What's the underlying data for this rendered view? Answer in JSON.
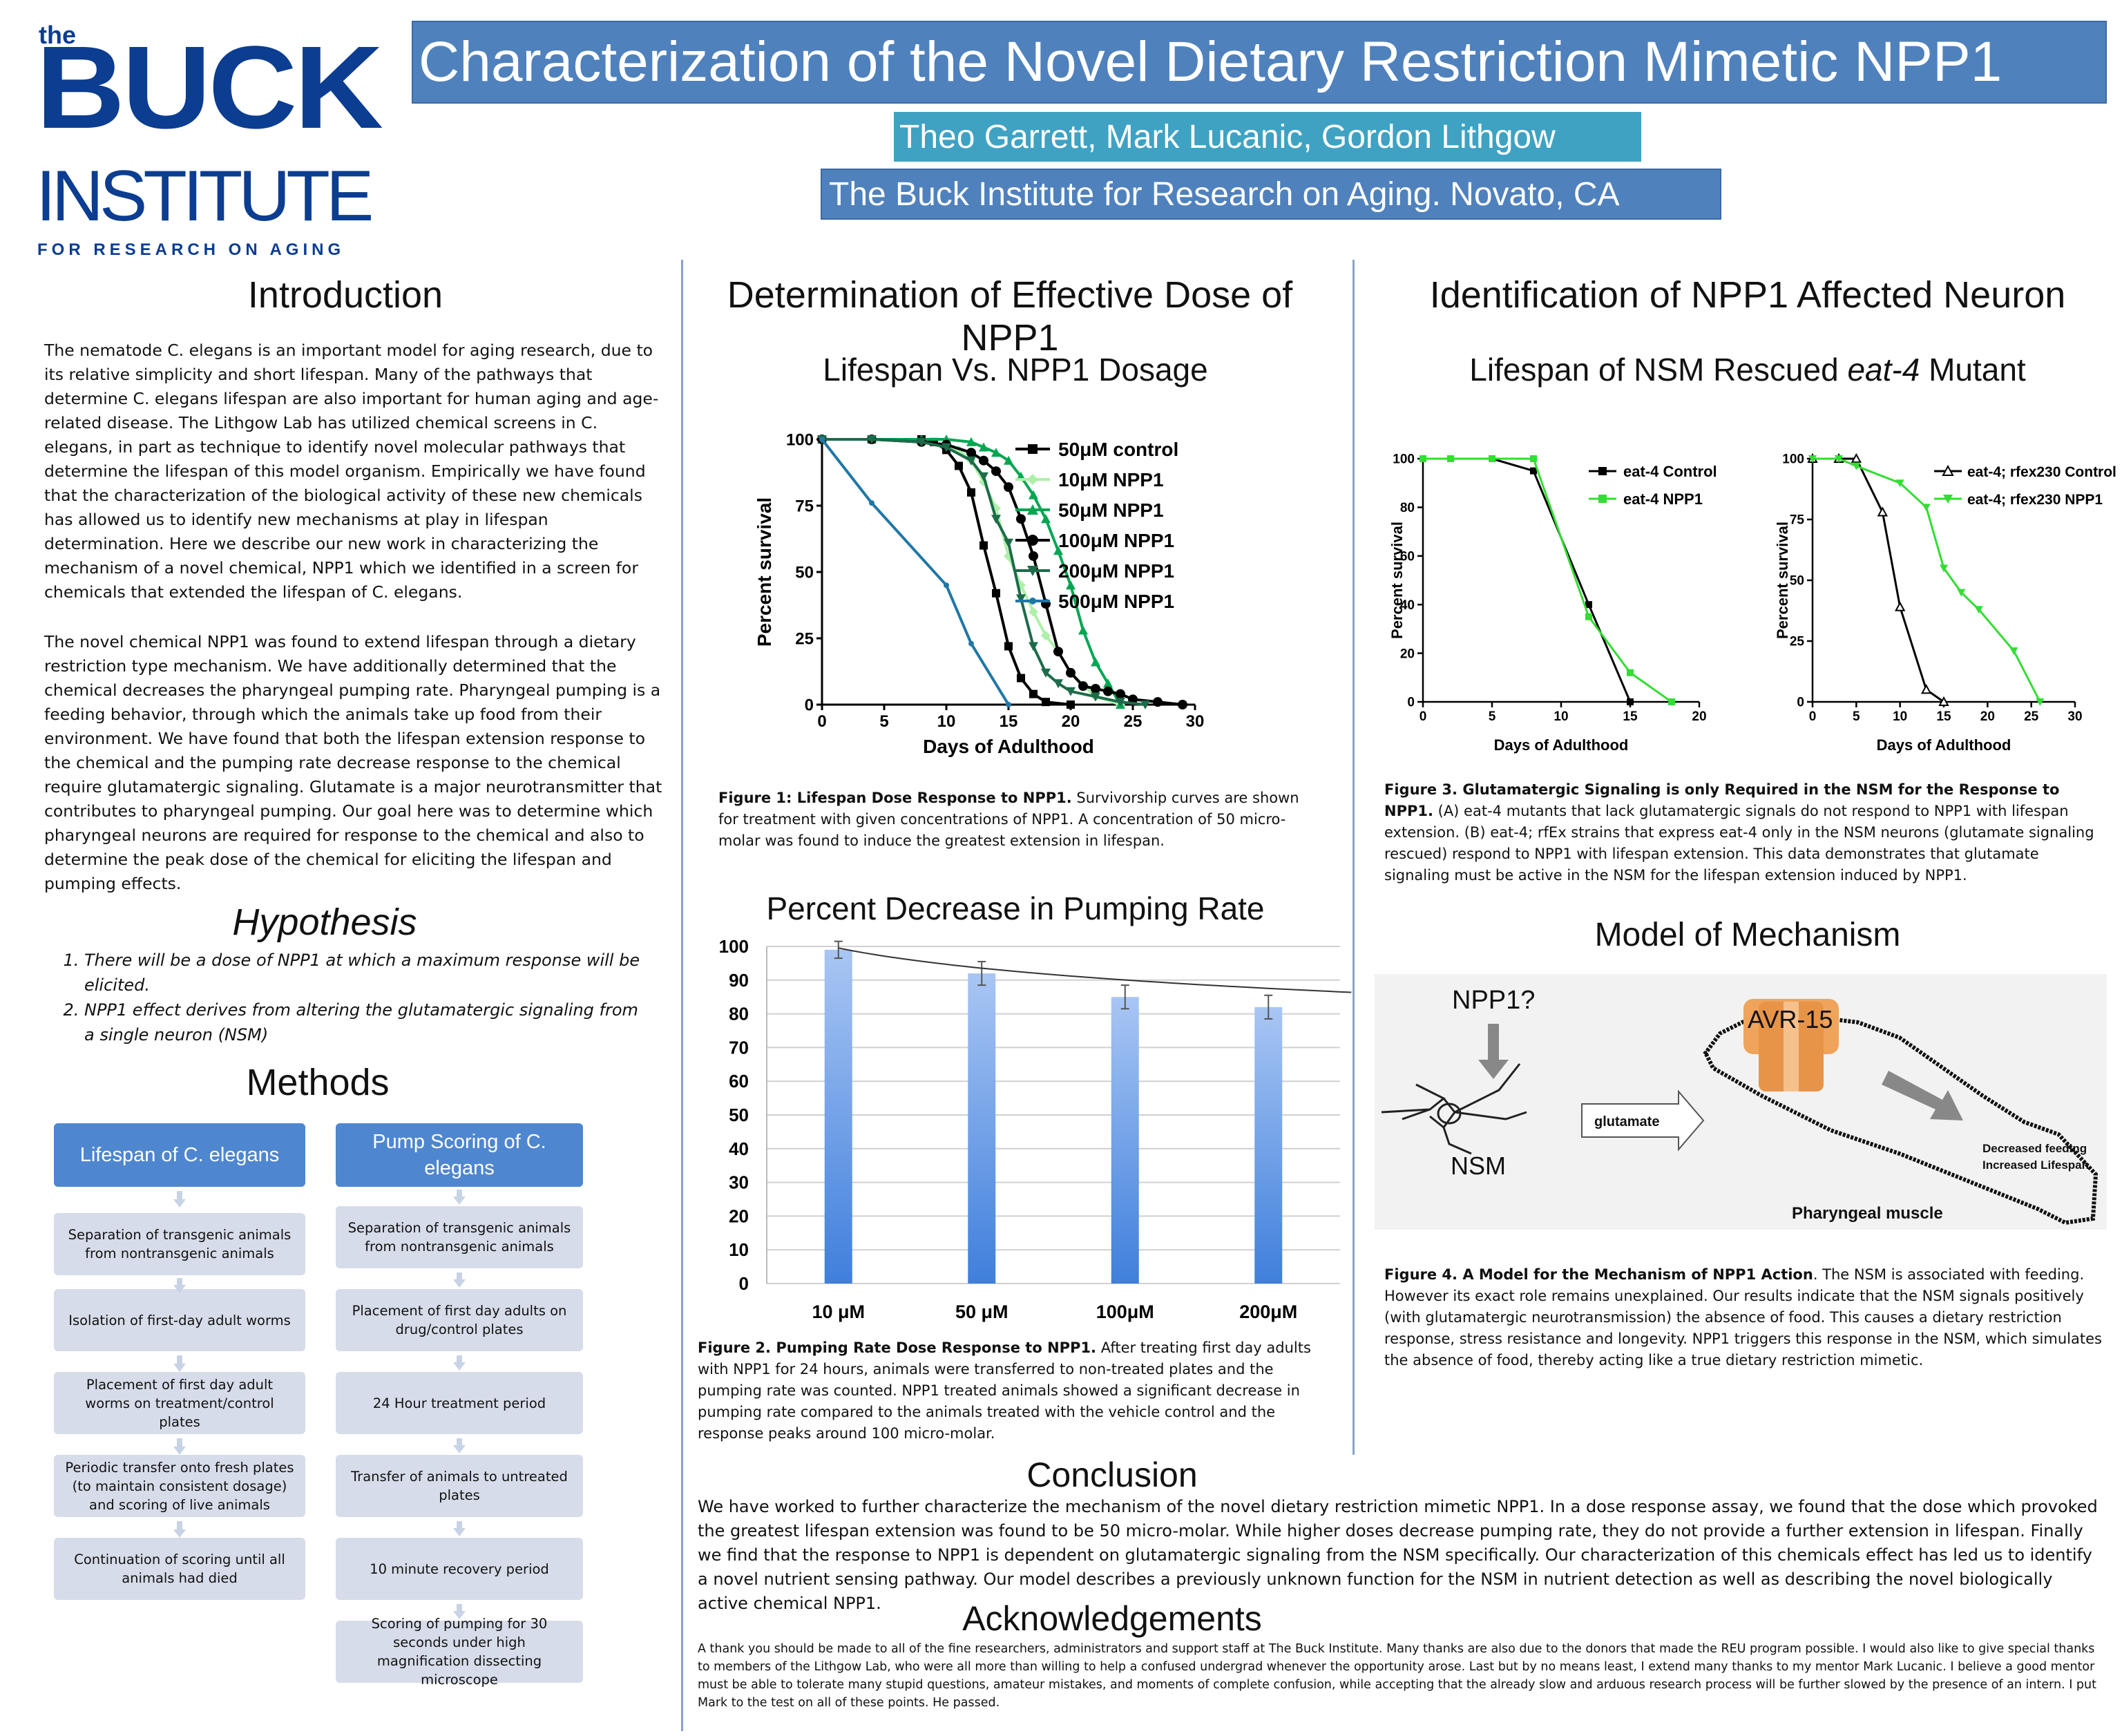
{
  "logo": {
    "line1": "the",
    "line2": "BUCK",
    "line3": "INSTITUTE",
    "line4": "FOR RESEARCH ON AGING"
  },
  "header": {
    "title": "Characterization of the Novel Dietary Restriction Mimetic NPP1",
    "authors": "Theo Garrett, Mark Lucanic, Gordon Lithgow",
    "affiliation": "The Buck Institute for Research on Aging. Novato, CA"
  },
  "introduction": {
    "title": "Introduction",
    "p1": "The nematode C. elegans is an important model for aging research, due to its relative simplicity and short lifespan. Many of the pathways that determine C. elegans lifespan are also important for human aging and age-related disease. The Lithgow Lab has utilized chemical screens in C. elegans, in part as technique to identify novel molecular pathways that determine the lifespan of this model organism. Empirically we have found that the characterization of the biological activity of these new chemicals has allowed us to identify new mechanisms at play in lifespan determination. Here we describe our new work in characterizing the mechanism of a novel chemical, NPP1 which we identified in a screen for chemicals that extended the lifespan of C. elegans.",
    "p2": "The novel chemical NPP1 was found to extend lifespan through a dietary restriction type mechanism. We have additionally determined that the chemical decreases the pharyngeal pumping rate. Pharyngeal pumping is a feeding behavior, through which the animals take up food from their environment. We have found that both the lifespan extension response to the chemical and the pumping rate decrease response to the chemical require glutamatergic signaling. Glutamate is a major neurotransmitter that contributes to pharyngeal pumping. Our goal here was to determine which pharyngeal neurons are required for response to the chemical and also to determine the peak dose of the chemical for eliciting the lifespan and pumping effects."
  },
  "hypothesis": {
    "title": "Hypothesis",
    "items": [
      "There will be a dose of NPP1 at which a maximum response will be elicited.",
      "NPP1 effect derives from altering the glutamatergic signaling from a single neuron (NSM)"
    ]
  },
  "methods": {
    "title": "Methods",
    "col1_head": "Lifespan of C. elegans",
    "col1": [
      "Separation of transgenic animals from nontransgenic animals",
      "Isolation of first-day adult worms",
      "Placement of first day adult worms on treatment/control plates",
      "Periodic transfer onto fresh plates (to maintain consistent dosage) and scoring of live animals",
      "Continuation of scoring until all animals had died"
    ],
    "col2_head": "Pump Scoring of C. elegans",
    "col2": [
      "Separation of transgenic animals from nontransgenic animals",
      "Placement of first day adults on drug/control plates",
      "24 Hour treatment period",
      "Transfer of animals to untreated plates",
      "10 minute recovery period",
      "Scoring of pumping for 30 seconds under high magnification dissecting microscope"
    ]
  },
  "dose_section": {
    "title": "Determination of Effective Dose of NPP1",
    "chart1_title": "Lifespan Vs. NPP1 Dosage",
    "fig1_caption_bold": "Figure 1: Lifespan Dose Response to NPP1.",
    "fig1_caption": " Survivorship curves are shown for treatment with given concentrations of NPP1. A concentration of 50 micro-molar was found to induce the greatest extension in lifespan.",
    "chart2_title": "Percent Decrease in Pumping Rate",
    "fig2_caption_bold": "Figure 2. Pumping Rate Dose Response to NPP1.",
    "fig2_caption": " After treating first day adults with NPP1 for 24 hours, animals were transferred to non-treated plates and the pumping rate was counted. NPP1 treated animals showed a significant decrease in pumping rate compared to the animals treated with the vehicle control and the response peaks around 100 micro-molar."
  },
  "neuron_section": {
    "title": "Identification of NPP1 Affected Neuron",
    "chart3_title_a": "Lifespan of NSM Rescued ",
    "chart3_title_b": "eat-4",
    "chart3_title_c": " Mutant",
    "fig3_caption_bold": "Figure 3. Glutamatergic Signaling is only Required in the NSM for the Response to NPP1.",
    "fig3_caption": " (A) eat-4 mutants that lack glutamatergic signals do not respond to NPP1 with lifespan extension. (B) eat-4; rfEx strains that express eat-4 only in the NSM neurons (glutamate signaling rescued) respond to NPP1 with lifespan extension. This data demonstrates that glutamate signaling must be active in the NSM for the lifespan extension induced by NPP1.",
    "model_title": "Model of Mechanism",
    "model_labels": {
      "npp1": "NPP1?",
      "avr": "AVR-15",
      "glutamate": "glutamate",
      "nsm": "NSM",
      "muscle": "Pharyngeal muscle",
      "effect1": "Decreased feeding",
      "effect2": "Increased Lifespan"
    },
    "fig4_caption_bold": "Figure 4. A Model for the Mechanism of NPP1 Action",
    "fig4_caption": ". The NSM is associated with feeding. However its exact role remains unexplained. Our results indicate that the NSM signals positively (with glutamatergic neurotransmission) the absence of food. This causes a dietary restriction response, stress resistance and longevity. NPP1 triggers this response in the NSM, which simulates the absence of food, thereby acting like a true dietary restriction mimetic."
  },
  "conclusion": {
    "title": "Conclusion",
    "text": "We have worked to further characterize the mechanism of the novel dietary restriction mimetic NPP1. In a dose response assay, we found that the dose which provoked the greatest lifespan extension was found to be 50 micro-molar. While higher doses decrease pumping rate, they do not provide a further extension in lifespan. Finally we find that the response to NPP1 is dependent on glutamatergic signaling from the NSM specifically. Our characterization of this chemicals effect has led us to identify a novel nutrient sensing pathway. Our model describes a previously unknown function for the NSM in nutrient detection as well as describing the novel biologically active chemical NPP1."
  },
  "acknowledgements": {
    "title": "Acknowledgements",
    "text": "A thank you should be made to all of the fine researchers, administrators and support staff at The Buck Institute. Many thanks are also due to the donors that made the REU program possible. I would also like to give special thanks to members of the Lithgow Lab, who were all more than willing to help a confused undergrad whenever the opportunity arose. Last but by no means least, I extend many thanks to my mentor Mark Lucanic. I believe a good mentor must be able to tolerate many stupid questions, amateur mistakes, and moments of complete confusion, while accepting that the already slow and arduous research process will be further slowed by the presence of an intern. I put Mark to the test on all of these points. He passed."
  },
  "colors": {
    "title_bg": "#4f81bd",
    "author_bg": "#3fa2c2",
    "blue_logo": "#0b3d91"
  },
  "chart_data": [
    {
      "type": "line",
      "xlabel": "Days of Adulthood",
      "ylabel": "Percent survival",
      "xlim": [
        0,
        30
      ],
      "ylim": [
        0,
        100
      ],
      "xticks": [
        0,
        5,
        10,
        15,
        20,
        25,
        30
      ],
      "yticks": [
        0,
        25,
        50,
        75,
        100
      ],
      "legend_position": "top-right",
      "series": [
        {
          "name": "50μM control",
          "color": "#000000",
          "marker": "square",
          "x": [
            0,
            4,
            8,
            9,
            10,
            11,
            12,
            13,
            14,
            15,
            16,
            17,
            18,
            20
          ],
          "y": [
            100,
            100,
            100,
            99,
            96,
            90,
            80,
            60,
            42,
            22,
            10,
            4,
            1,
            0
          ]
        },
        {
          "name": "10μM NPP1",
          "color": "#aef0aa",
          "marker": "diamond",
          "x": [
            0,
            4,
            8,
            10,
            11,
            12,
            13,
            14,
            15,
            16,
            17,
            18,
            19,
            20,
            22,
            24
          ],
          "y": [
            100,
            100,
            99,
            98,
            96,
            92,
            84,
            74,
            56,
            45,
            35,
            26,
            20,
            12,
            3,
            0
          ]
        },
        {
          "name": "50μM NPP1",
          "color": "#00a651",
          "marker": "triangle",
          "x": [
            0,
            4,
            8,
            10,
            12,
            13,
            14,
            15,
            16,
            17,
            18,
            19,
            20,
            21,
            22,
            23,
            24
          ],
          "y": [
            100,
            100,
            100,
            100,
            99,
            97,
            95,
            92,
            86,
            79,
            70,
            58,
            45,
            28,
            16,
            8,
            0
          ]
        },
        {
          "name": "100μM NPP1",
          "color": "#000000",
          "marker": "circle",
          "x": [
            0,
            4,
            8,
            10,
            12,
            13,
            14,
            15,
            16,
            17,
            18,
            19,
            20,
            21,
            22,
            23,
            24,
            25,
            27,
            29
          ],
          "y": [
            100,
            100,
            99,
            98,
            95,
            92,
            88,
            82,
            70,
            56,
            38,
            20,
            12,
            7,
            6,
            5,
            4,
            2,
            1,
            0
          ]
        },
        {
          "name": "200μM NPP1",
          "color": "#1d6b4a",
          "marker": "triangle-down",
          "x": [
            0,
            4,
            8,
            10,
            12,
            13,
            14,
            15,
            16,
            17,
            18,
            19,
            20,
            22,
            24,
            26
          ],
          "y": [
            100,
            100,
            99,
            97,
            92,
            86,
            70,
            61,
            40,
            22,
            12,
            8,
            5,
            3,
            1,
            0
          ]
        },
        {
          "name": "500μM NPP1",
          "color": "#1f77a6",
          "marker": "dot",
          "x": [
            0,
            4,
            10,
            12,
            15
          ],
          "y": [
            100,
            76,
            45,
            23,
            0
          ]
        }
      ]
    },
    {
      "type": "bar",
      "categories": [
        "10 μM",
        "50 μM",
        "100μM",
        "200μM"
      ],
      "values": [
        99,
        92,
        85,
        82
      ],
      "errors": [
        2.5,
        3.5,
        3.5,
        3.5
      ],
      "ylim": [
        0,
        100
      ],
      "yticks": [
        0,
        10,
        20,
        30,
        40,
        50,
        60,
        70,
        80,
        90,
        100
      ],
      "trendline": true,
      "grid": true
    },
    {
      "type": "line",
      "xlabel": "Days of Adulthood",
      "ylabel": "Percent survival",
      "xlim": [
        0,
        20
      ],
      "ylim": [
        0,
        100
      ],
      "xticks": [
        0,
        5,
        10,
        15,
        20
      ],
      "yticks": [
        0,
        20,
        40,
        60,
        80,
        100
      ],
      "series": [
        {
          "name": "eat-4 Control",
          "color": "#000000",
          "marker": "square",
          "x": [
            0,
            2,
            5,
            8,
            12,
            15
          ],
          "y": [
            100,
            100,
            100,
            95,
            40,
            0
          ]
        },
        {
          "name": "eat-4 NPP1",
          "color": "#33dd33",
          "marker": "square",
          "x": [
            0,
            2,
            5,
            8,
            12,
            15,
            18
          ],
          "y": [
            100,
            100,
            100,
            100,
            35,
            12,
            0
          ]
        }
      ]
    },
    {
      "type": "line",
      "xlabel": "Days of Adulthood",
      "ylabel": "Percent survival",
      "xlim": [
        0,
        30
      ],
      "ylim": [
        0,
        100
      ],
      "xticks": [
        0,
        5,
        10,
        15,
        20,
        25,
        30
      ],
      "yticks": [
        0,
        25,
        50,
        75,
        100
      ],
      "series": [
        {
          "name": "eat-4; rfex230 Control",
          "color": "#000000",
          "marker": "triangle-open",
          "x": [
            0,
            3,
            5,
            8,
            10,
            13,
            15
          ],
          "y": [
            100,
            100,
            100,
            78,
            39,
            5,
            0
          ]
        },
        {
          "name": "eat-4; rfex230 NPP1",
          "color": "#33dd33",
          "marker": "triangle-down",
          "x": [
            0,
            3,
            5,
            10,
            13,
            15,
            17,
            19,
            23,
            26
          ],
          "y": [
            100,
            100,
            97,
            90,
            80,
            55,
            45,
            38,
            21,
            0
          ]
        }
      ]
    }
  ]
}
